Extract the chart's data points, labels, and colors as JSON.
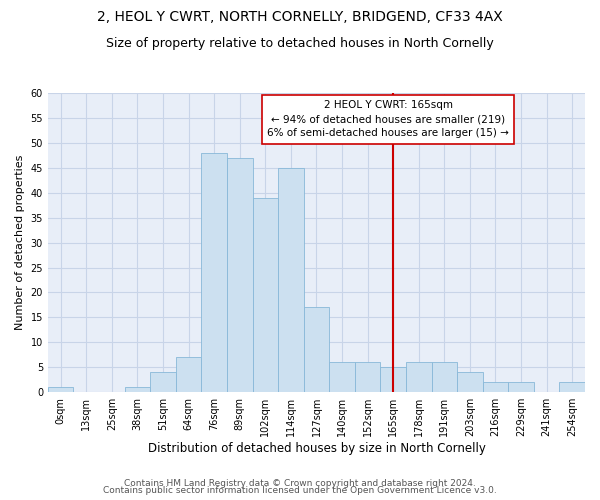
{
  "title1": "2, HEOL Y CWRT, NORTH CORNELLY, BRIDGEND, CF33 4AX",
  "title2": "Size of property relative to detached houses in North Cornelly",
  "xlabel": "Distribution of detached houses by size in North Cornelly",
  "ylabel": "Number of detached properties",
  "bin_labels": [
    "0sqm",
    "13sqm",
    "25sqm",
    "38sqm",
    "51sqm",
    "64sqm",
    "76sqm",
    "89sqm",
    "102sqm",
    "114sqm",
    "127sqm",
    "140sqm",
    "152sqm",
    "165sqm",
    "178sqm",
    "191sqm",
    "203sqm",
    "216sqm",
    "229sqm",
    "241sqm",
    "254sqm"
  ],
  "bar_heights": [
    1,
    0,
    0,
    1,
    4,
    7,
    48,
    47,
    39,
    45,
    17,
    6,
    6,
    5,
    6,
    6,
    4,
    2,
    2,
    0,
    2
  ],
  "bar_color": "#cce0f0",
  "bar_edge_color": "#88b8d8",
  "vline_x_index": 13,
  "vline_color": "#cc0000",
  "annotation_text": "2 HEOL Y CWRT: 165sqm\n← 94% of detached houses are smaller (219)\n6% of semi-detached houses are larger (15) →",
  "annotation_box_color": "#ffffff",
  "annotation_box_edge_color": "#cc0000",
  "ylim": [
    0,
    60
  ],
  "yticks": [
    0,
    5,
    10,
    15,
    20,
    25,
    30,
    35,
    40,
    45,
    50,
    55,
    60
  ],
  "grid_color": "#c8d4e8",
  "bg_color": "#e8eef8",
  "footer1": "Contains HM Land Registry data © Crown copyright and database right 2024.",
  "footer2": "Contains public sector information licensed under the Open Government Licence v3.0.",
  "title1_fontsize": 10,
  "title2_fontsize": 9,
  "xlabel_fontsize": 8.5,
  "ylabel_fontsize": 8,
  "tick_fontsize": 7,
  "footer_fontsize": 6.5,
  "annot_fontsize": 7.5
}
